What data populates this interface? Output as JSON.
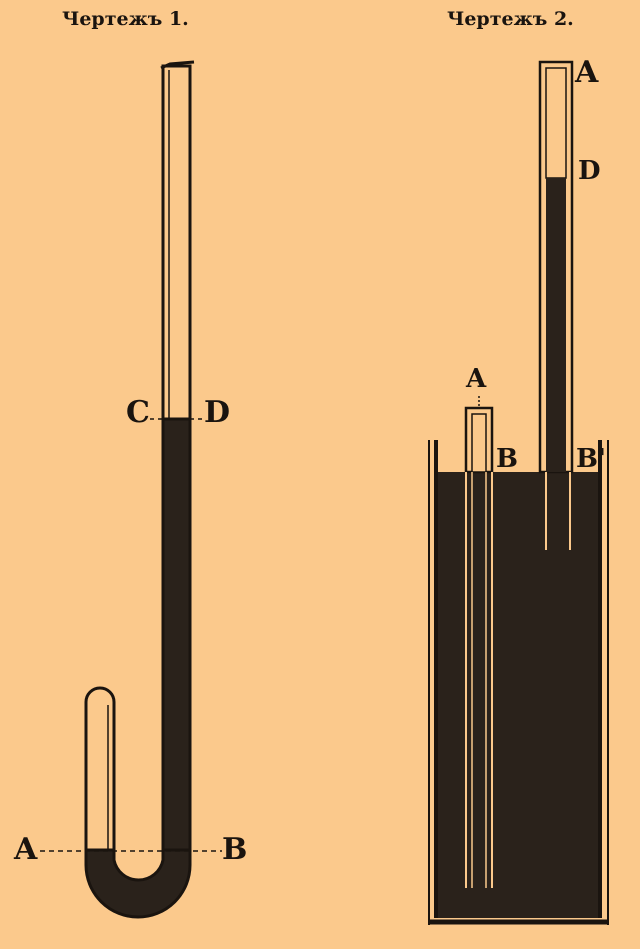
{
  "figure1": {
    "title": "Чертежъ 1.",
    "labels": {
      "c": "C",
      "d": "D",
      "a": "A",
      "b": "B"
    }
  },
  "figure2": {
    "title": "Чертежъ 2.",
    "labels": {
      "a_long": "A",
      "d": "D",
      "a_short": "A",
      "b": "B",
      "b_prime": "B'"
    }
  },
  "colors": {
    "background": "#fbc98c",
    "ink": "#1a140f",
    "tube_glass": "#fbc98c",
    "mercury": "#2a221b"
  }
}
